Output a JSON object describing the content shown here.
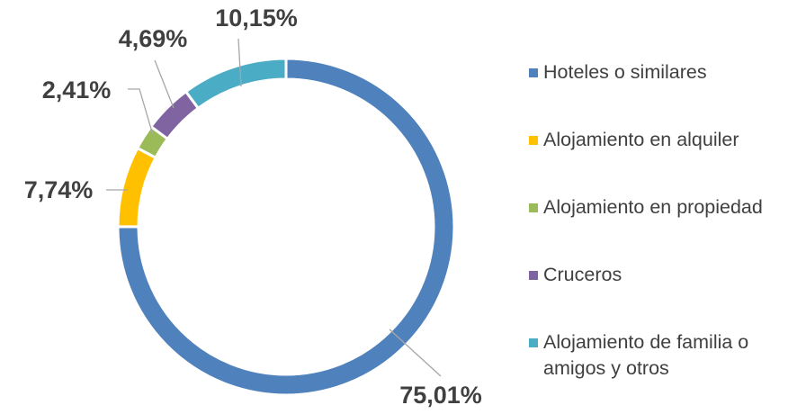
{
  "chart_data": {
    "type": "donut",
    "categories": [
      "Hoteles o similares",
      "Alojamiento en alquiler",
      "Alojamiento en propiedad",
      "Cruceros",
      "Alojamiento de familia o amigos y otros"
    ],
    "values": [
      75.01,
      7.74,
      2.41,
      4.69,
      10.15
    ],
    "value_labels": [
      "75,01%",
      "7,74%",
      "2,41%",
      "4,69%",
      "10,15%"
    ],
    "colors": [
      "#4f81bd",
      "#ffc000",
      "#9bbb59",
      "#8064a2",
      "#4bacc6"
    ],
    "legend": "right"
  }
}
